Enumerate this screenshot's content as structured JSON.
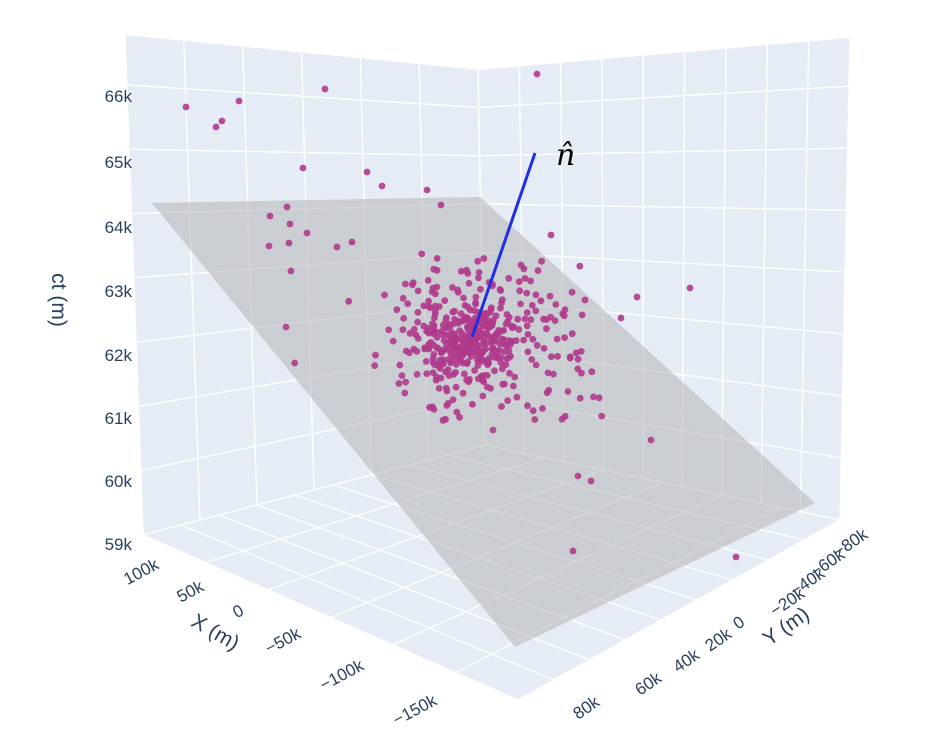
{
  "chart_data": {
    "type": "scatter",
    "is_3d": true,
    "axes": {
      "x": {
        "label": "X (m)",
        "ticks": [
          "100k",
          "50k",
          "0",
          "−50k",
          "−100k",
          "−150k"
        ]
      },
      "y": {
        "label": "Y (m)",
        "ticks": [
          "−80k",
          "−60k",
          "−40k",
          "−20k",
          "0",
          "20k",
          "40k",
          "60k",
          "80k"
        ]
      },
      "z": {
        "label": "ct (m)",
        "ticks": [
          "59k",
          "60k",
          "61k",
          "62k",
          "63k",
          "64k",
          "65k",
          "66k"
        ],
        "range": [
          59000,
          67000
        ]
      }
    },
    "normal_vector": {
      "label": "n̂",
      "color": "#1f2fe6"
    },
    "plane": {
      "color": "#b4b4b4",
      "opacity": 0.55
    },
    "marker_color": "#b03a8c",
    "background_color": "#e5ecf6",
    "grid": true
  }
}
